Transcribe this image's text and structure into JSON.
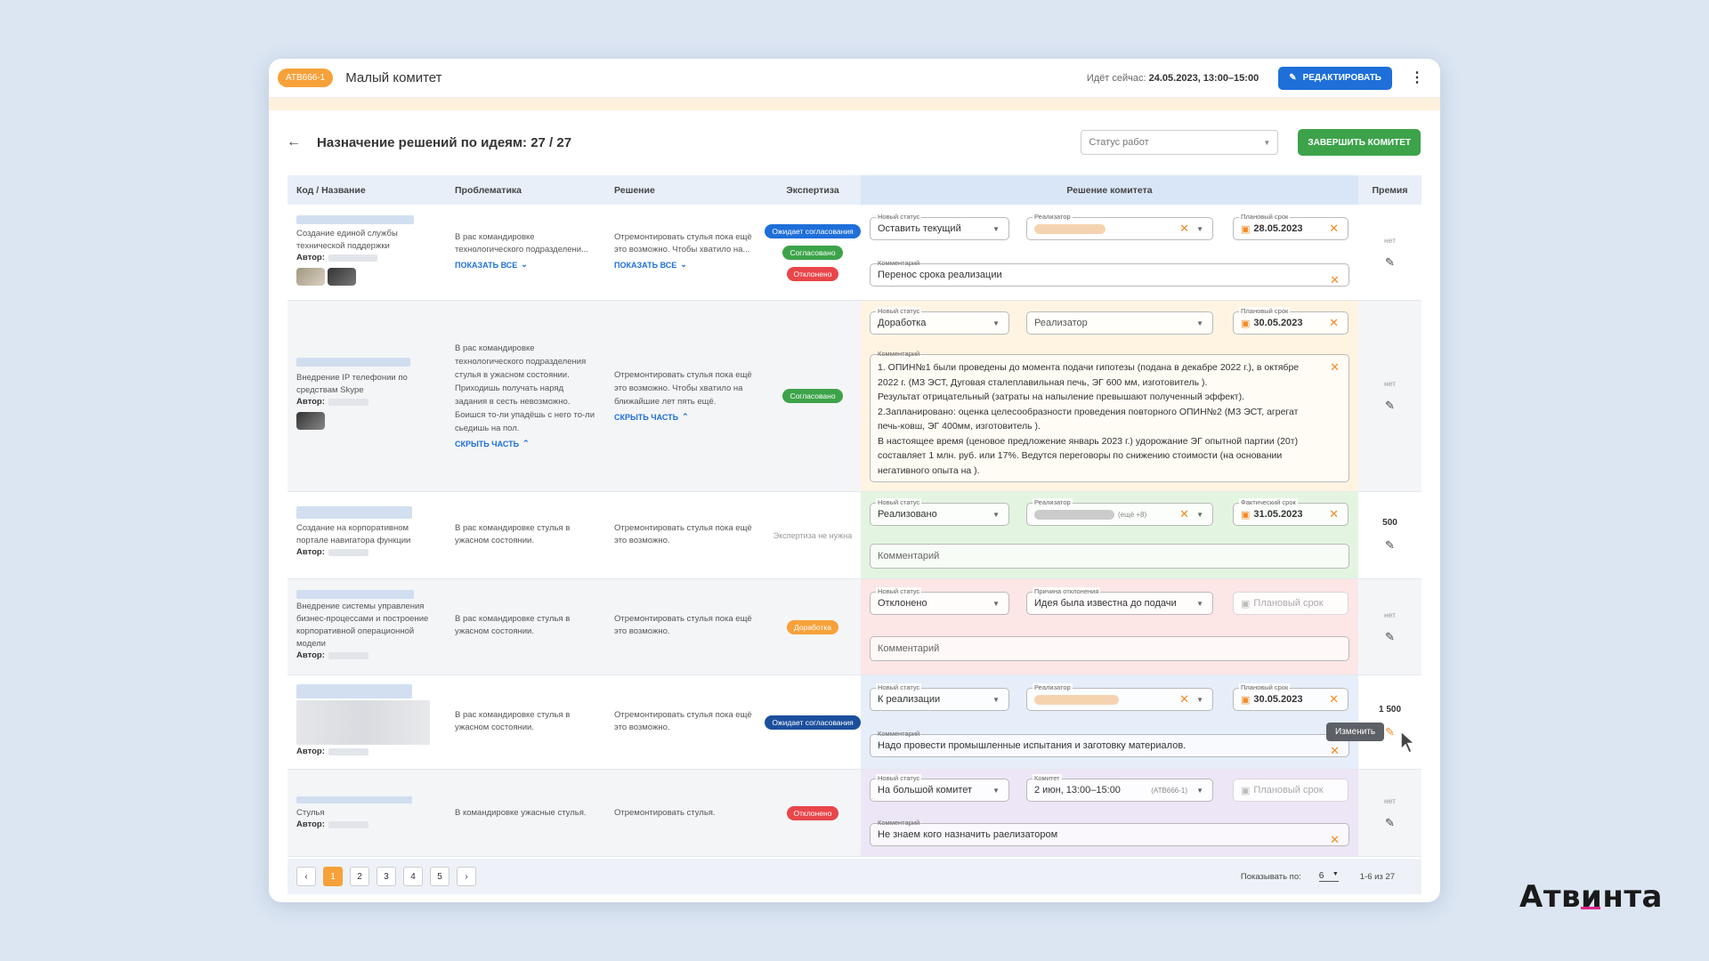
{
  "topbar": {
    "code": "АТВ666-1",
    "title": "Малый комитет",
    "now_label": "Идёт сейчас:",
    "now_value": "24.05.2023, 13:00–15:00",
    "edit_label": "РЕДАКТИРОВАТЬ"
  },
  "header": {
    "title": "Назначение решений по идеям: 27 / 27",
    "status_placeholder": "Статус работ",
    "finish_label": "ЗАВЕРШИТЬ КОМИТЕТ"
  },
  "columns": [
    "Код / Название",
    "Проблематика",
    "Решение",
    "Экспертиза",
    "Решение комитета",
    "Премия"
  ],
  "labels": {
    "author": "Автор:",
    "show_all": "ПОКАЗАТЬ ВСЕ",
    "hide_part": "СКРЫТЬ ЧАСТЬ",
    "new_status": "Новый статус",
    "implementer": "Реализатор",
    "planned_term": "Плановый срок",
    "actual_term": "Фактический срок",
    "comment": "Комментарий",
    "reject_reason": "Причина отклонения",
    "committee": "Комитет",
    "none": "нет"
  },
  "rows": [
    {
      "name": "Создание единой службы технической поддержки",
      "problem": "В рас командировке технологического подразделени...",
      "solution": "Отремонтировать стулья пока ещё это возможно. Чтобы хватило на...",
      "expertise": [
        {
          "text": "Ожидает согласования",
          "color": "#1e6fd9"
        },
        {
          "text": "Согласовано",
          "color": "#3da34a"
        },
        {
          "text": "Отклонено",
          "color": "#e8464a"
        }
      ],
      "status": "Оставить текущий",
      "term": "28.05.2023",
      "comment": "Перенос срока реализации",
      "premium": "нет"
    },
    {
      "name": "Внедрение IP телефонии по средствам Skype",
      "problem": "В рас командировке технологического подразделения стулья в ужасном состоянии. Приходишь получать наряд задания в сесть невозможно. Боишся то-ли упадёшь с него то-ли сьедишь на пол.",
      "solution": "Отремонтировать стулья пока ещё это возможно. Чтобы хватило на ближайшие лет пять ещё.",
      "expertise": [
        {
          "text": "Согласовано",
          "color": "#3da34a"
        }
      ],
      "status": "Доработка",
      "implementer_placeholder": "Реализатор",
      "term": "30.05.2023",
      "comment_lines": [
        "1. ОПИН№1 были проведены до момента подачи гипотезы (подана в декабре 2022 г.), в октябре",
        "2022 г. (МЗ ЭСТ, Дуговая сталеплавильная печь, ЭГ 600 мм, изготовитель               ).",
        "Результат отрицательный (затраты на напыление превышают полученный эффект).",
        "2.Запланировано: оценка целесообразности проведения повторного ОПИН№2 (МЗ ЭСТ, агрегат",
        "печь-ковш, ЭГ 400мм, изготовитель               ).",
        "В настоящее время (ценовое предложение январь 2023 г.) удорожание ЭГ опытной партии (20т)",
        "составляет 1 млн. руб. или 17%. Ведутся переговоры по снижению стоимости (на основании",
        "негативного опыта на          )."
      ],
      "premium": "нет"
    },
    {
      "name": "Создание на корпоративном портале навигатора функции",
      "problem": "В рас командировке стулья в ужасном состоянии.",
      "solution": "Отремонтировать стулья пока ещё это возможно.",
      "expertise_text": "Экспертиза не нужна",
      "status": "Реализовано",
      "implementer_extra": "(ещё +8)",
      "term": "31.05.2023",
      "comment_placeholder": "Комментарий",
      "premium": "500"
    },
    {
      "name": "Внедрение системы управления бизнес-процессами и построение корпоративной операционной модели",
      "problem": "В рас командировке стулья в ужасном состоянии.",
      "solution": "Отремонтировать стулья пока ещё это возможно.",
      "expertise": [
        {
          "text": "Доработка",
          "color": "#f7a13a"
        }
      ],
      "status": "Отклонено",
      "reject_reason": "Идея была известна до подачи",
      "term_placeholder": "Плановый срок",
      "comment_placeholder": "Комментарий",
      "premium": "нет"
    },
    {
      "problem": "В рас командировке стулья в ужасном состоянии.",
      "solution": "Отремонтировать стулья пока ещё это возможно.",
      "expertise": [
        {
          "text": "Ожидает согласования",
          "color": "#1b4f9c"
        }
      ],
      "status": "К реализации",
      "term": "30.05.2023",
      "comment": "Надо провести промышленные испытания и заготовку материалов.",
      "premium": "1 500",
      "tooltip": "Изменить"
    },
    {
      "name": "Стулья",
      "problem": "В командировке ужасные стулья.",
      "solution": "Отремонтировать стулья.",
      "expertise": [
        {
          "text": "Отклонено",
          "color": "#e8464a"
        }
      ],
      "status": "На большой комитет",
      "committee": "2 июн, 13:00–15:00",
      "committee_code": "(АТВ666-1)",
      "term_placeholder": "Плановый срок",
      "comment": "Не знаем кого назначить раелизатором",
      "premium": "нет"
    }
  ],
  "pagination": {
    "pages": [
      "1",
      "2",
      "3",
      "4",
      "5"
    ],
    "active": "1",
    "show_by_label": "Показывать по:",
    "per_page": "6",
    "range": "1-6 из 27"
  },
  "brand": "Атвинта",
  "colors": {
    "accent": "#1e6fd9",
    "orange": "#f7a13a",
    "green": "#3da34a",
    "red": "#e8464a",
    "brand_underline": "#e0258a"
  }
}
